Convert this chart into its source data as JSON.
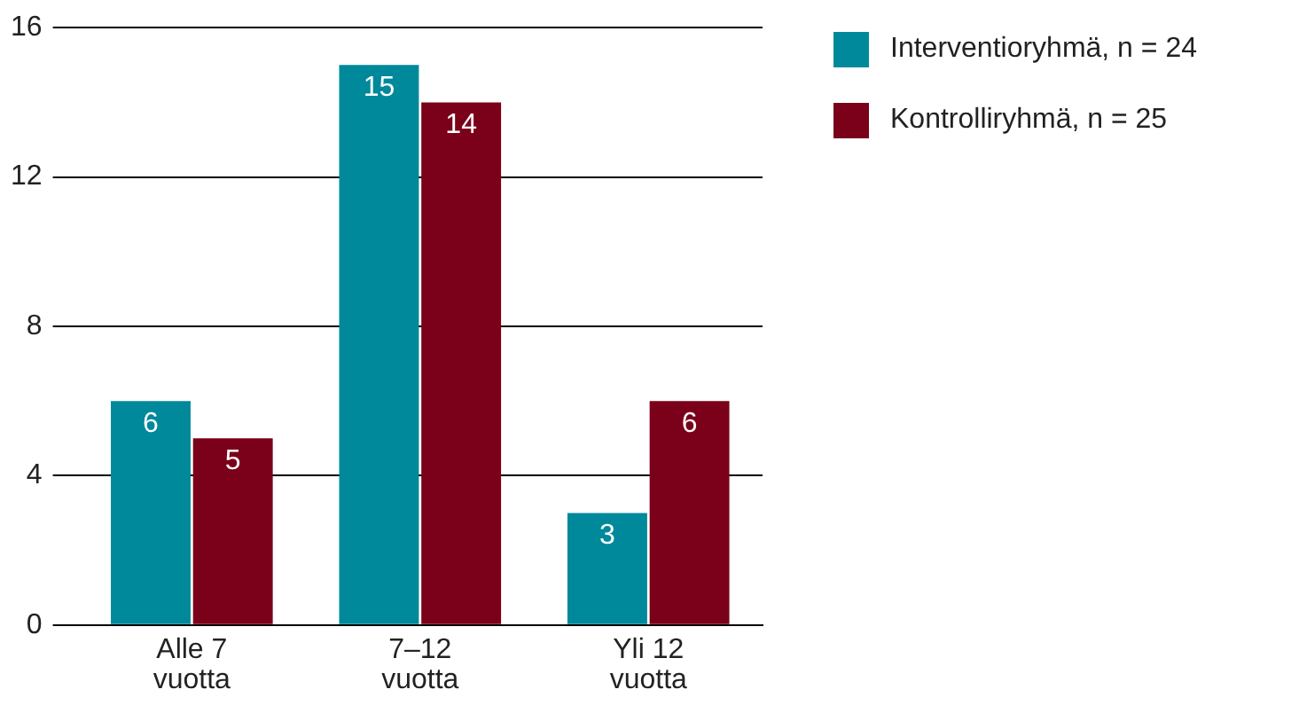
{
  "chart_data": {
    "type": "bar",
    "categories": [
      "Alle 7\nvuotta",
      "7–12\nvuotta",
      "Yli 12\nvuotta"
    ],
    "series": [
      {
        "name": "Interventioryhmä, n = 24",
        "color": "#00889b",
        "values": [
          6,
          15,
          3
        ]
      },
      {
        "name": "Kontrolliryhmä, n = 25",
        "color": "#7b0019",
        "values": [
          5,
          14,
          6
        ]
      }
    ],
    "ylim": [
      0,
      16
    ],
    "yticks": [
      0,
      4,
      8,
      12,
      16
    ],
    "grid": "y",
    "legend": "top right",
    "data_labels": true
  }
}
